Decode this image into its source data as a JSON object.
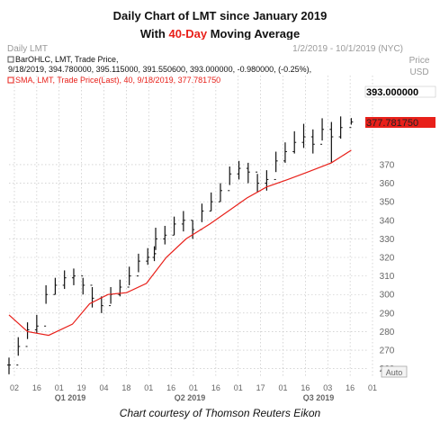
{
  "title": {
    "line1": "Daily Chart of LMT since January 2019",
    "line2_before": "With ",
    "line2_accent": "40-Day",
    "line2_after": " Moving Average"
  },
  "caption": "Chart courtesy of Thomson Reuters Eikon",
  "colors": {
    "accent": "#e8201a",
    "bars": "#111111",
    "sma": "#e8201a",
    "grid": "#bcbcbc"
  },
  "chart_data": {
    "type": "line",
    "header": {
      "left_label": "Daily LMT",
      "range_label": "1/2/2019 - 10/1/2019 (NYC)",
      "price_label": "Price",
      "currency_label": "USD",
      "legend_ohlc_line1": "BarOHLC, LMT, Trade Price,",
      "legend_ohlc_line2": "9/18/2019, 394.780000, 395.115000, 391.550600, 393.000000, -0.980000, (-0.25%),",
      "legend_sma": "SMA, LMT, Trade Price(Last), 40, 9/18/2019, 377.781750"
    },
    "last_price_label": "393.000000",
    "sma_label": "377.781750",
    "auto_label": "Auto",
    "ylim": [
      255,
      418
    ],
    "y_ticks": [
      260,
      270,
      280,
      290,
      300,
      310,
      320,
      330,
      340,
      350,
      360,
      370
    ],
    "y_tick_labels": [
      "260",
      "270",
      "280",
      "290",
      "300",
      "310",
      "320",
      "330",
      "340",
      "350",
      "360",
      "370"
    ],
    "x_day_ticks": [
      "02",
      "16",
      "01",
      "19",
      "04",
      "18",
      "01",
      "16",
      "01",
      "16",
      "01",
      "17",
      "01",
      "16",
      "03",
      "16",
      "01"
    ],
    "x_month_labels": [
      "Q1 2019",
      "Q2 2019",
      "Q3 2019"
    ],
    "series": [
      {
        "name": "BarOHLC, LMT, Trade Price",
        "kind": "ohlc",
        "dates": [
          "2019-01-02",
          "2019-01-09",
          "2019-01-16",
          "2019-01-23",
          "2019-01-30",
          "2019-02-06",
          "2019-02-13",
          "2019-02-20",
          "2019-02-27",
          "2019-03-06",
          "2019-03-13",
          "2019-03-20",
          "2019-03-27",
          "2019-04-03",
          "2019-04-10",
          "2019-04-17",
          "2019-04-22",
          "2019-04-23",
          "2019-04-30",
          "2019-05-07",
          "2019-05-14",
          "2019-05-21",
          "2019-05-28",
          "2019-06-04",
          "2019-06-11",
          "2019-06-18",
          "2019-06-25",
          "2019-07-02",
          "2019-07-09",
          "2019-07-16",
          "2019-07-23",
          "2019-07-30",
          "2019-08-06",
          "2019-08-13",
          "2019-08-20",
          "2019-08-27",
          "2019-09-03",
          "2019-09-10",
          "2019-09-18"
        ],
        "close": [
          262,
          272,
          281,
          283,
          300,
          305,
          309,
          310,
          305,
          298,
          294,
          300,
          304,
          310,
          318,
          320,
          322,
          330,
          332,
          338,
          340,
          335,
          345,
          350,
          356,
          365,
          368,
          366,
          360,
          362,
          372,
          377,
          382,
          385,
          381,
          389,
          385,
          390,
          393
        ],
        "high": [
          266,
          277,
          285,
          289,
          305,
          309,
          313,
          314,
          309,
          304,
          299,
          304,
          308,
          315,
          322,
          325,
          326,
          336,
          337,
          342,
          345,
          340,
          349,
          355,
          360,
          369,
          372,
          371,
          365,
          367,
          377,
          382,
          388,
          392,
          389,
          395,
          393,
          396,
          395.115
        ],
        "low": [
          257,
          267,
          276,
          279,
          295,
          300,
          303,
          305,
          300,
          293,
          290,
          295,
          299,
          305,
          312,
          316,
          318,
          324,
          327,
          332,
          334,
          330,
          339,
          345,
          350,
          359,
          362,
          360,
          355,
          356,
          366,
          371,
          376,
          379,
          376,
          383,
          371,
          384,
          391.55
        ]
      },
      {
        "name": "SMA, LMT, Trade Price(Last), 40",
        "kind": "line",
        "dates": [
          "2019-01-02",
          "2019-01-16",
          "2019-02-01",
          "2019-02-19",
          "2019-03-04",
          "2019-03-18",
          "2019-04-01",
          "2019-04-16",
          "2019-05-01",
          "2019-05-16",
          "2019-06-03",
          "2019-06-17",
          "2019-07-01",
          "2019-07-16",
          "2019-08-01",
          "2019-08-16",
          "2019-09-03",
          "2019-09-18"
        ],
        "values": [
          289,
          280,
          278,
          284,
          295,
          300,
          301,
          306,
          320,
          330,
          338,
          345,
          352,
          358,
          362,
          366,
          371,
          377.78175
        ]
      }
    ]
  }
}
